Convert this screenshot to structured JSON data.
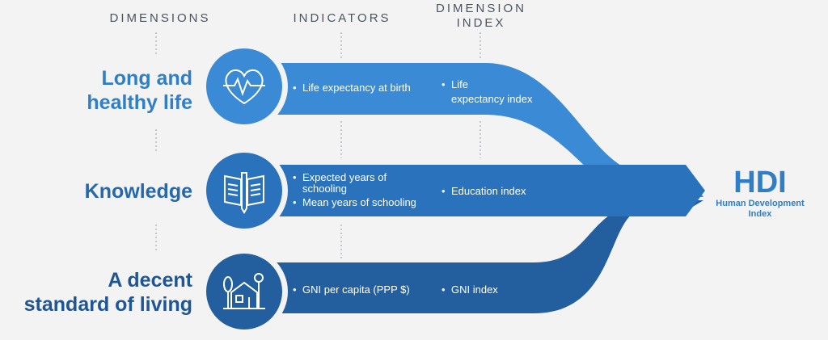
{
  "headers": {
    "dimensions": "DIMENSIONS",
    "indicators": "INDICATORS",
    "dimension_index_line1": "DIMENSION",
    "dimension_index_line2": "INDEX"
  },
  "rows": [
    {
      "label_line1": "Long and",
      "label_line2": "healthy life",
      "icon": "heart-pulse-icon",
      "indicators": [
        "Life expectancy at birth"
      ],
      "index_line1": "Life",
      "index_line2": "expectancy index",
      "color": "#3a8ad6"
    },
    {
      "label_line1": "Knowledge",
      "icon": "book-pencil-icon",
      "indicator1_line1": "Expected years of",
      "indicator1_line2": "schooling",
      "indicator2": "Mean years of schooling",
      "index_line1": "Education index",
      "color": "#2b72bc"
    },
    {
      "label_line1": "A decent",
      "label_line2": "standard of living",
      "icon": "house-tree-icon",
      "indicators": [
        "GNI per capita (PPP $)"
      ],
      "index_line1": "GNI index",
      "color": "#235e9e"
    }
  ],
  "result": {
    "title": "HDI",
    "subtitle_line1": "Human Development",
    "subtitle_line2": "Index",
    "color": "#2f7ec6"
  }
}
